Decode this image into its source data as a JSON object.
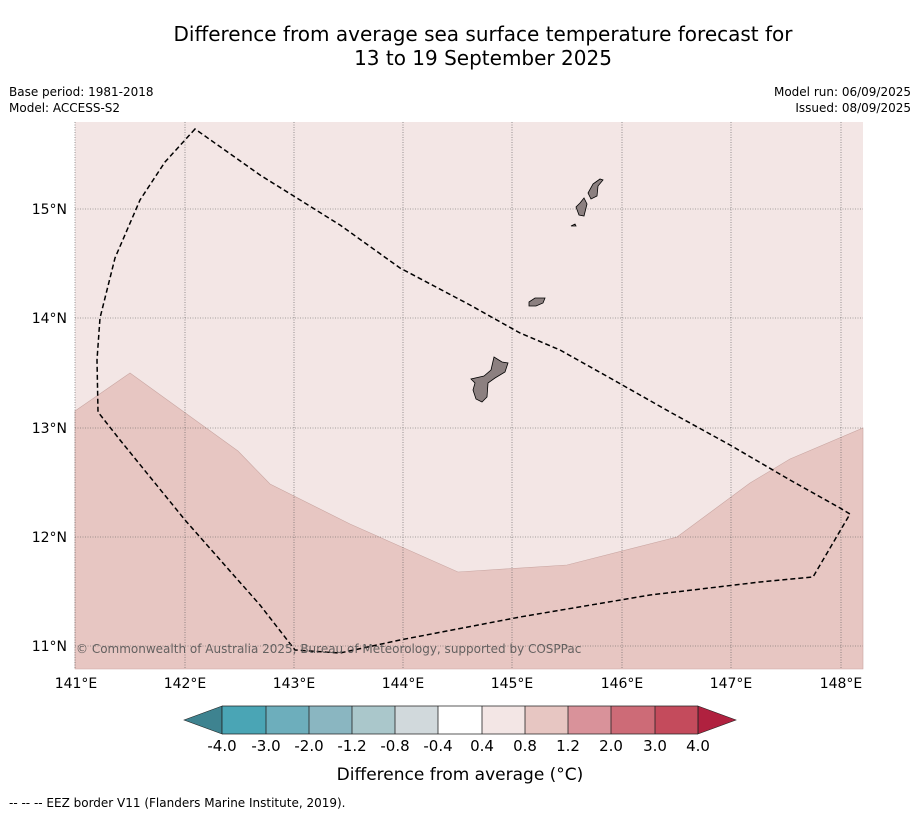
{
  "title": {
    "line1": "Difference from average sea surface temperature forecast for",
    "line2": "13 to 19 September 2025"
  },
  "meta_left": {
    "base_period": "Base period: 1981-2018",
    "model": "Model: ACCESS-S2"
  },
  "meta_right": {
    "model_run": "Model run: 06/09/2025",
    "issued": "Issued: 08/09/2025"
  },
  "map": {
    "lon_ticks": [
      "141°E",
      "142°E",
      "143°E",
      "144°E",
      "145°E",
      "146°E",
      "147°E",
      "148°E"
    ],
    "lat_ticks": [
      "15°N",
      "14°N",
      "13°N",
      "12°N",
      "11°N"
    ],
    "lon_range": [
      141.0,
      148.2
    ],
    "lat_range": [
      10.8,
      15.8
    ],
    "copyright": "© Commonwealth of Australia 2025, Bureau of Meteorology, supported by COSPPac",
    "colors": {
      "anomaly_0.4_0.8": "#f3e6e5",
      "anomaly_0.8_1.2": "#e7c6c2",
      "land": "#8c8080",
      "grid": "#555555",
      "eez_border": "#000000"
    }
  },
  "colorbar": {
    "label": "Difference from average (°C)",
    "tick_labels": [
      "-4.0",
      "-3.0",
      "-2.0",
      "-1.2",
      "-0.8",
      "-0.4",
      "0.4",
      "0.8",
      "1.2",
      "2.0",
      "3.0",
      "4.0"
    ],
    "colors": [
      "#4aa5b5",
      "#6daebc",
      "#8ab6c1",
      "#aac7cb",
      "#d1d9dc",
      "#ffffff",
      "#f3e6e5",
      "#e7c6c2",
      "#d9929a",
      "#cd6b77",
      "#c44b5c"
    ],
    "under_color": "#3e8390",
    "over_color": "#b0213f"
  },
  "footer": "--  --  -- EEZ border V11 (Flanders Marine Institute, 2019)."
}
